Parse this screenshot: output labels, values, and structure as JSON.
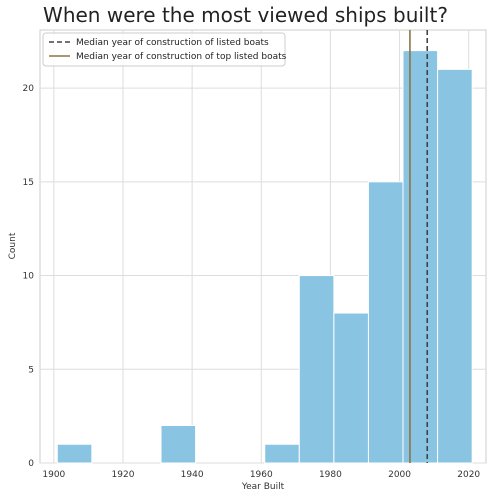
{
  "chart_data": {
    "type": "bar",
    "title": "When were the most viewed ships built?",
    "xlabel": "Year Built",
    "ylabel": "Count",
    "xlim": [
      1896,
      2025
    ],
    "ylim": [
      0,
      23.1
    ],
    "xticks": [
      1900,
      1920,
      1940,
      1960,
      1980,
      2000,
      2020
    ],
    "yticks": [
      0,
      5,
      10,
      15,
      20
    ],
    "grid": true,
    "bin_width": 10,
    "bins": [
      {
        "start": 1901,
        "end": 1911,
        "count": 1
      },
      {
        "start": 1911,
        "end": 1921,
        "count": 0
      },
      {
        "start": 1921,
        "end": 1931,
        "count": 0
      },
      {
        "start": 1931,
        "end": 1941,
        "count": 2
      },
      {
        "start": 1941,
        "end": 1951,
        "count": 0
      },
      {
        "start": 1951,
        "end": 1961,
        "count": 0
      },
      {
        "start": 1961,
        "end": 1971,
        "count": 1
      },
      {
        "start": 1971,
        "end": 1981,
        "count": 10
      },
      {
        "start": 1981,
        "end": 1991,
        "count": 8
      },
      {
        "start": 1991,
        "end": 2001,
        "count": 15
      },
      {
        "start": 2001,
        "end": 2011,
        "count": 22
      },
      {
        "start": 2011,
        "end": 2021,
        "count": 21
      }
    ],
    "bar_color": "#89c4e3",
    "median_lines": [
      {
        "name": "Median year of construction of listed boats",
        "x": 2008,
        "style": "dashed",
        "color": "#444444"
      },
      {
        "name": "Median year of construction of top listed boats",
        "x": 2003,
        "style": "solid",
        "color": "#8b7346"
      }
    ],
    "legend_position": "top-left"
  }
}
